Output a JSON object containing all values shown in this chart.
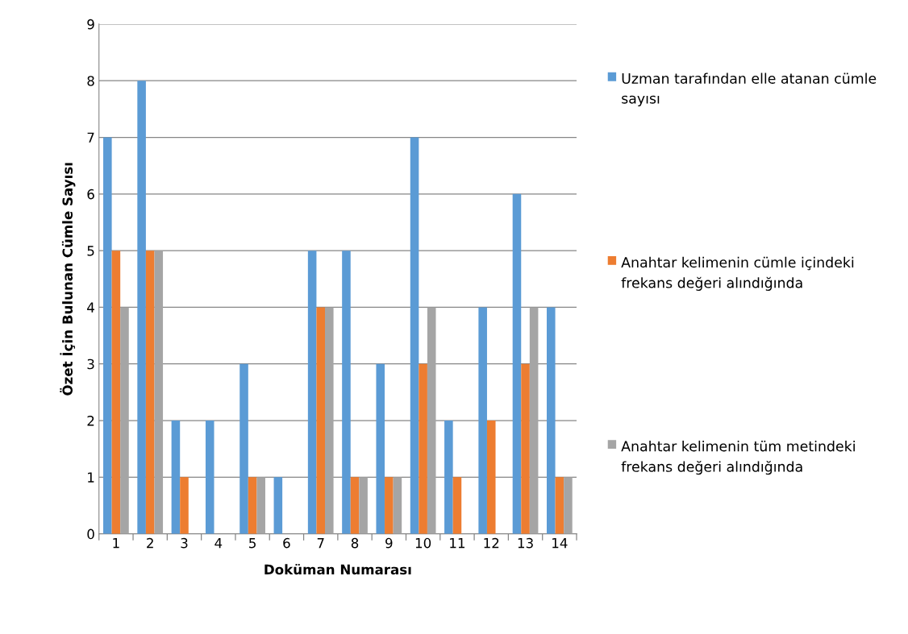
{
  "chart_data": {
    "type": "bar",
    "xlabel": "Doküman Numarası",
    "ylabel": "Özet İçin Bulunan Cümle Sayısı",
    "categories": [
      "1",
      "2",
      "3",
      "4",
      "5",
      "6",
      "7",
      "8",
      "9",
      "10",
      "11",
      "12",
      "13",
      "14"
    ],
    "series": [
      {
        "name": "Uzman tarafından elle atanan cümle sayısı",
        "color": "#5b9bd5",
        "values": [
          7,
          8,
          2,
          2,
          3,
          1,
          5,
          5,
          3,
          7,
          2,
          4,
          6,
          4
        ]
      },
      {
        "name": "Anahtar kelimenin cümle içindeki frekans değeri alındığında",
        "color": "#ed7d31",
        "values": [
          5,
          5,
          1,
          0,
          1,
          0,
          4,
          1,
          1,
          3,
          1,
          2,
          3,
          1
        ]
      },
      {
        "name": "Anahtar kelimenin tüm metindeki frekans değeri alındığında",
        "color": "#a5a5a5",
        "values": [
          4,
          5,
          0,
          0,
          1,
          0,
          4,
          1,
          1,
          4,
          0,
          0,
          4,
          1
        ]
      }
    ],
    "ylim": [
      0,
      9
    ],
    "yticks": [
      0,
      1,
      2,
      3,
      4,
      5,
      6,
      7,
      8,
      9
    ],
    "grid": "y",
    "legend": "right"
  }
}
